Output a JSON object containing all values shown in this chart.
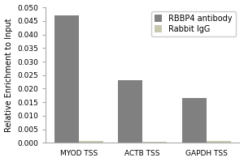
{
  "groups": [
    "MYOD TSS",
    "ACTB TSS",
    "GAPDH TSS"
  ],
  "series": [
    {
      "label": "RBBP4 antibody",
      "values": [
        0.047,
        0.023,
        0.0167
      ],
      "color": "#808080"
    },
    {
      "label": "Rabbit IgG",
      "values": [
        0.0006,
        0.0004,
        0.0006
      ],
      "color": "#c8c8b0"
    }
  ],
  "ylabel": "Relative Enrichment to Input",
  "ylim": [
    0.0,
    0.05
  ],
  "yticks": [
    0.0,
    0.005,
    0.01,
    0.015,
    0.02,
    0.025,
    0.03,
    0.035,
    0.04,
    0.045,
    0.05
  ],
  "bar_width": 0.38,
  "background_color": "#ffffff",
  "legend_fontsize": 7,
  "axis_fontsize": 7,
  "tick_fontsize": 6.5
}
